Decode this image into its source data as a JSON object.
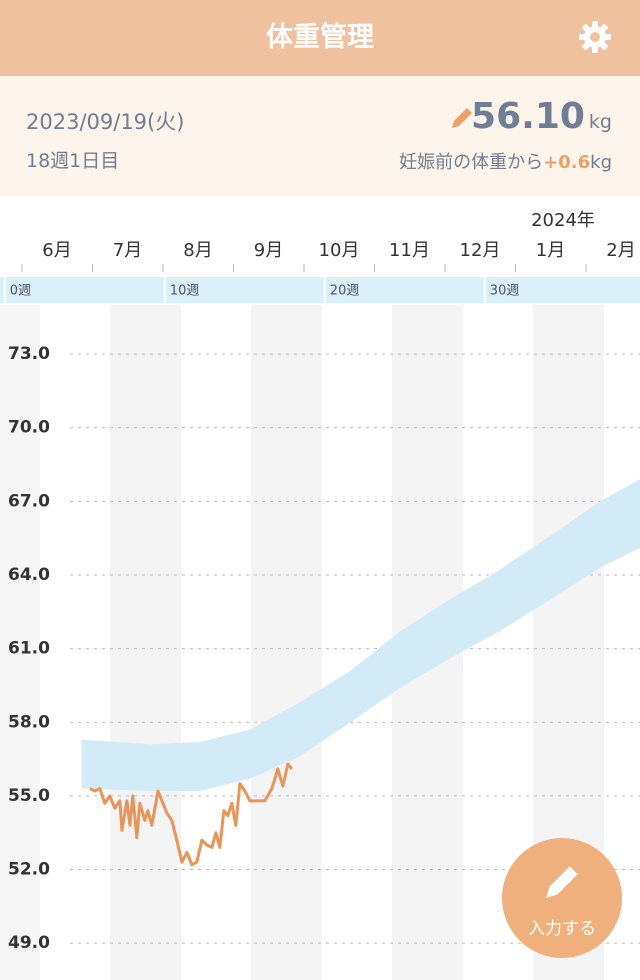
{
  "header": {
    "title": "体重管理"
  },
  "summary": {
    "date": "2023/09/19(火)",
    "week_day": "18週1日目",
    "weight": "56.10",
    "weight_unit": "kg",
    "diff_prefix": "妊娠前の体重から",
    "diff": "+0.6",
    "diff_unit": "kg"
  },
  "button": {
    "label": "入力する"
  },
  "chart_data": {
    "type": "line",
    "year_label": "2024年",
    "months": [
      "6月",
      "7月",
      "8月",
      "9月",
      "10月",
      "11月",
      "12月",
      "1月",
      "2月"
    ],
    "xlim": [
      -0.3,
      39.7
    ],
    "xticks": [
      {
        "value": 0,
        "label": "0週"
      },
      {
        "value": 10,
        "label": "10週"
      },
      {
        "value": 20,
        "label": "20週"
      },
      {
        "value": 30,
        "label": "30週"
      }
    ],
    "ylim": [
      47.5,
      75.0
    ],
    "yticks": [
      {
        "value": 73,
        "label": "73.0"
      },
      {
        "value": 70,
        "label": "70.0"
      },
      {
        "value": 67,
        "label": "67.0"
      },
      {
        "value": 64,
        "label": "64.0"
      },
      {
        "value": 61,
        "label": "61.0"
      },
      {
        "value": 58,
        "label": "58.0"
      },
      {
        "value": 55,
        "label": "55.0"
      },
      {
        "value": 52,
        "label": "52.0"
      },
      {
        "value": 49,
        "label": "49.0"
      }
    ],
    "grid": true,
    "band": {
      "color": "#d3ebf6",
      "x": [
        4.8,
        9.1,
        12.2,
        15.3,
        18.4,
        21.6,
        24.7,
        27.8,
        30.9,
        34.1,
        37.2,
        39.7
      ],
      "upper": [
        57.3,
        57.1,
        57.2,
        57.7,
        58.8,
        60.1,
        61.7,
        63.0,
        64.2,
        65.6,
        67.0,
        67.9
      ],
      "lower": [
        55.3,
        55.2,
        55.2,
        55.7,
        56.6,
        58.0,
        59.4,
        60.6,
        61.7,
        63.0,
        64.3,
        65.1
      ]
    },
    "series": [
      {
        "color": "#e8955a",
        "x": [
          5.32,
          5.63,
          5.94,
          6.25,
          6.56,
          6.88,
          7.19,
          7.32,
          7.63,
          7.82,
          8.0,
          8.25,
          8.44,
          8.75,
          8.94,
          9.19,
          9.38,
          9.57,
          9.82,
          10.13,
          10.44,
          10.75,
          11.07,
          11.38,
          11.69,
          12.0,
          12.32,
          12.63,
          12.94,
          13.19,
          13.44,
          13.69,
          13.94,
          14.19,
          14.44,
          14.69,
          15.0,
          15.32,
          15.82,
          16.25,
          16.69,
          17.07,
          17.38,
          17.69,
          17.94
        ],
        "values": [
          55.3,
          55.2,
          55.3,
          54.7,
          55.0,
          54.5,
          54.8,
          53.6,
          54.8,
          53.8,
          55.0,
          53.3,
          54.7,
          54.0,
          54.4,
          53.8,
          54.5,
          55.2,
          54.8,
          54.3,
          54.0,
          53.2,
          52.3,
          52.7,
          52.2,
          52.3,
          53.2,
          53.0,
          52.9,
          53.5,
          52.9,
          54.4,
          54.2,
          54.7,
          53.8,
          55.5,
          55.2,
          54.8,
          54.8,
          54.8,
          55.3,
          56.1,
          55.4,
          56.3,
          56.1
        ]
      }
    ]
  }
}
